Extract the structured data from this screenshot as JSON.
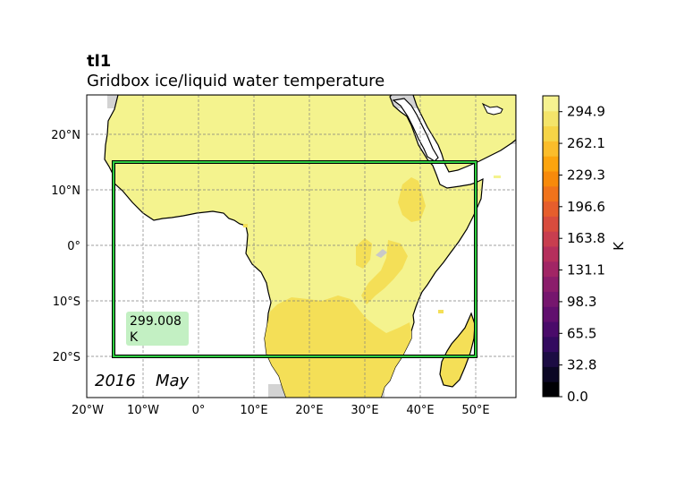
{
  "header": {
    "variable": "tl1",
    "long_name": "Gridbox ice/liquid water temperature"
  },
  "map": {
    "lon_ticks": [
      "20°W",
      "10°W",
      "0°",
      "10°E",
      "20°E",
      "30°E",
      "40°E",
      "50°E"
    ],
    "lat_ticks": [
      "20°N",
      "10°N",
      "0°",
      "10°S",
      "20°S"
    ],
    "region_box": {
      "lon_min": -15,
      "lon_max": 50,
      "lat_min": -20,
      "lat_max": 15
    },
    "extent": {
      "lon_min": -20,
      "lon_max": 57,
      "lat_min": -27.5,
      "lat_max": 27
    },
    "area_mean_value": "299.008",
    "area_mean_units": "K",
    "date_year": "2016",
    "date_month": "May"
  },
  "colorbar": {
    "label": "K",
    "tick_labels": [
      "294.9",
      "262.1",
      "229.3",
      "196.6",
      "163.8",
      "131.1",
      "98.3",
      "65.5",
      "32.8",
      "0.0"
    ],
    "levels_min": 0.0,
    "levels_max": 311.3,
    "colormap": "inferno",
    "colors": [
      "#000004",
      "#0b0724",
      "#1c0c43",
      "#330a5f",
      "#4a0b6a",
      "#610f6e",
      "#76166e",
      "#8b1d6b",
      "#a12565",
      "#b52f5c",
      "#c83e4f",
      "#d84c3e",
      "#e65e2c",
      "#f0731b",
      "#f78a0b",
      "#fca40e",
      "#fbbd2b",
      "#f6d447",
      "#f4e46a",
      "#f6f290"
    ]
  },
  "colors": {
    "land_main": "#f4f38e",
    "land_warm": "#f4df57",
    "no_data": "#d3d3d3",
    "box_outer": "#000000",
    "box_inner": "#2ecc40",
    "mean_box_bg": "#c3f0c3"
  }
}
